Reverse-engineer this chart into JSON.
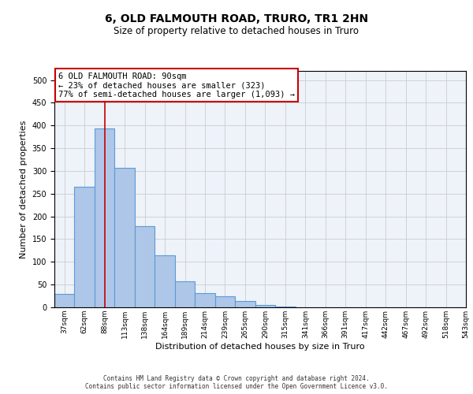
{
  "title_line1": "6, OLD FALMOUTH ROAD, TRURO, TR1 2HN",
  "title_line2": "Size of property relative to detached houses in Truro",
  "xlabel": "Distribution of detached houses by size in Truro",
  "ylabel": "Number of detached properties",
  "bin_labels": [
    "37sqm",
    "62sqm",
    "88sqm",
    "113sqm",
    "138sqm",
    "164sqm",
    "189sqm",
    "214sqm",
    "239sqm",
    "265sqm",
    "290sqm",
    "315sqm",
    "341sqm",
    "366sqm",
    "391sqm",
    "417sqm",
    "442sqm",
    "467sqm",
    "492sqm",
    "518sqm",
    "543sqm"
  ],
  "bar_values": [
    30,
    265,
    393,
    307,
    178,
    115,
    58,
    32,
    25,
    14,
    6,
    1,
    0,
    0,
    0,
    0,
    0,
    0,
    0,
    0,
    0
  ],
  "bar_color": "#aec6e8",
  "bar_edge_color": "#5b9bd5",
  "property_bin_index": 2,
  "red_line_color": "#cc0000",
  "annotation_text": "6 OLD FALMOUTH ROAD: 90sqm\n← 23% of detached houses are smaller (323)\n77% of semi-detached houses are larger (1,093) →",
  "annotation_box_color": "#cc0000",
  "ylim": [
    0,
    520
  ],
  "yticks": [
    0,
    50,
    100,
    150,
    200,
    250,
    300,
    350,
    400,
    450,
    500
  ],
  "grid_color": "#cccccc",
  "background_color": "#eef2f9",
  "footer_line1": "Contains HM Land Registry data © Crown copyright and database right 2024.",
  "footer_line2": "Contains public sector information licensed under the Open Government Licence v3.0."
}
